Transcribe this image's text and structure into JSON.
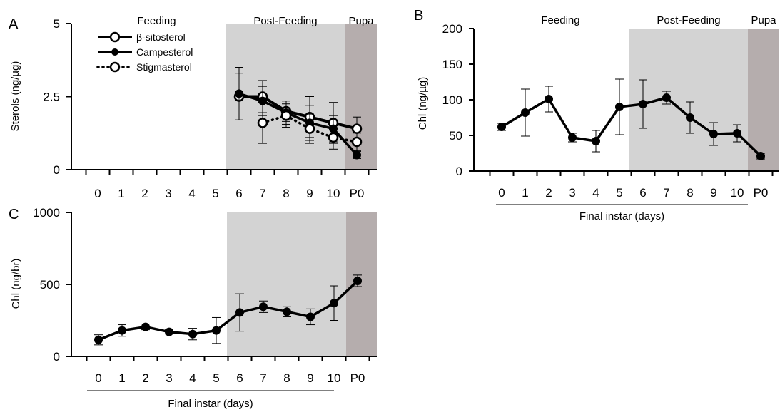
{
  "colors": {
    "post_feeding_shade": "#d3d3d3",
    "pupa_shade": "#b5adad",
    "line": "#000000",
    "open_marker_fill": "#ffffff"
  },
  "chart_data": [
    {
      "panel": "A",
      "type": "line",
      "categories": [
        "0",
        "1",
        "2",
        "3",
        "4",
        "5",
        "6",
        "7",
        "8",
        "9",
        "10",
        "P0"
      ],
      "ylabel": "Sterols (ng/µg)",
      "xlabel": "",
      "ylim": [
        0,
        5
      ],
      "yticks": [
        "0",
        "2.5",
        "5"
      ],
      "regions": [
        {
          "label": "Feeding",
          "from": 0,
          "to": 5,
          "shade": "none"
        },
        {
          "label": "Post-Feeding",
          "from": 6,
          "to": 10,
          "shade": "light"
        },
        {
          "label": "Pupa",
          "from": 11,
          "to": 11,
          "shade": "dark"
        }
      ],
      "legend_position": "top-left",
      "series": [
        {
          "name": "β-sitosterol",
          "marker": "open",
          "style": "solid-thick",
          "x": [
            "6",
            "7",
            "8",
            "9",
            "10",
            "P0"
          ],
          "values": [
            2.5,
            2.5,
            2.0,
            1.8,
            1.6,
            1.4
          ],
          "errors": [
            0.8,
            0.55,
            0.35,
            0.7,
            0.7,
            0.4
          ]
        },
        {
          "name": "Campesterol",
          "marker": "filled",
          "style": "solid",
          "x": [
            "6",
            "7",
            "8",
            "9",
            "10",
            "P0"
          ],
          "values": [
            2.6,
            2.35,
            1.95,
            1.6,
            1.4,
            0.5
          ],
          "errors": [
            0.9,
            0.5,
            0.4,
            0.6,
            0.45,
            0.12
          ]
        },
        {
          "name": "Stigmasterol",
          "marker": "open",
          "style": "dotted",
          "x": [
            "7",
            "8",
            "9",
            "10",
            "P0"
          ],
          "values": [
            1.6,
            1.85,
            1.4,
            1.1,
            0.95
          ],
          "errors": [
            0.7,
            0.4,
            0.5,
            0.4,
            0.3
          ]
        }
      ]
    },
    {
      "panel": "B",
      "type": "line",
      "categories": [
        "0",
        "1",
        "2",
        "3",
        "4",
        "5",
        "6",
        "7",
        "8",
        "9",
        "10",
        "P0"
      ],
      "ylabel": "Chl (ng/µg)",
      "xlabel": "Final instar (days)",
      "ylim": [
        0,
        200
      ],
      "yticks": [
        "0",
        "50",
        "100",
        "150",
        "200"
      ],
      "regions": [
        {
          "label": "Feeding",
          "from": 0,
          "to": 5,
          "shade": "none"
        },
        {
          "label": "Post-Feeding",
          "from": 6,
          "to": 10,
          "shade": "light"
        },
        {
          "label": "Pupa",
          "from": 11,
          "to": 11,
          "shade": "dark"
        }
      ],
      "series": [
        {
          "marker": "filled",
          "style": "solid",
          "x": [
            "0",
            "1",
            "2",
            "3",
            "4",
            "5",
            "6",
            "7",
            "8",
            "9",
            "10",
            "P0"
          ],
          "values": [
            62,
            82,
            101,
            47,
            42,
            90,
            94,
            103,
            75,
            52,
            53,
            21
          ],
          "errors": [
            5,
            33,
            18,
            6,
            15,
            39,
            34,
            9,
            22,
            16,
            12,
            4
          ]
        }
      ]
    },
    {
      "panel": "C",
      "type": "line",
      "categories": [
        "0",
        "1",
        "2",
        "3",
        "4",
        "5",
        "6",
        "7",
        "8",
        "9",
        "10",
        "P0"
      ],
      "ylabel": "Chl (ng/br)",
      "xlabel": "Final instar (days)",
      "ylim": [
        0,
        1000
      ],
      "yticks": [
        "0",
        "500",
        "1000"
      ],
      "regions": [
        {
          "label": "",
          "from": 6,
          "to": 10,
          "shade": "light"
        },
        {
          "label": "",
          "from": 11,
          "to": 11,
          "shade": "dark"
        }
      ],
      "series": [
        {
          "marker": "filled",
          "style": "solid",
          "x": [
            "0",
            "1",
            "2",
            "3",
            "4",
            "5",
            "6",
            "7",
            "8",
            "9",
            "10",
            "P0"
          ],
          "values": [
            115,
            180,
            205,
            170,
            155,
            180,
            305,
            345,
            310,
            275,
            370,
            525
          ],
          "errors": [
            35,
            40,
            20,
            15,
            40,
            90,
            130,
            40,
            35,
            55,
            120,
            40
          ]
        }
      ]
    }
  ]
}
